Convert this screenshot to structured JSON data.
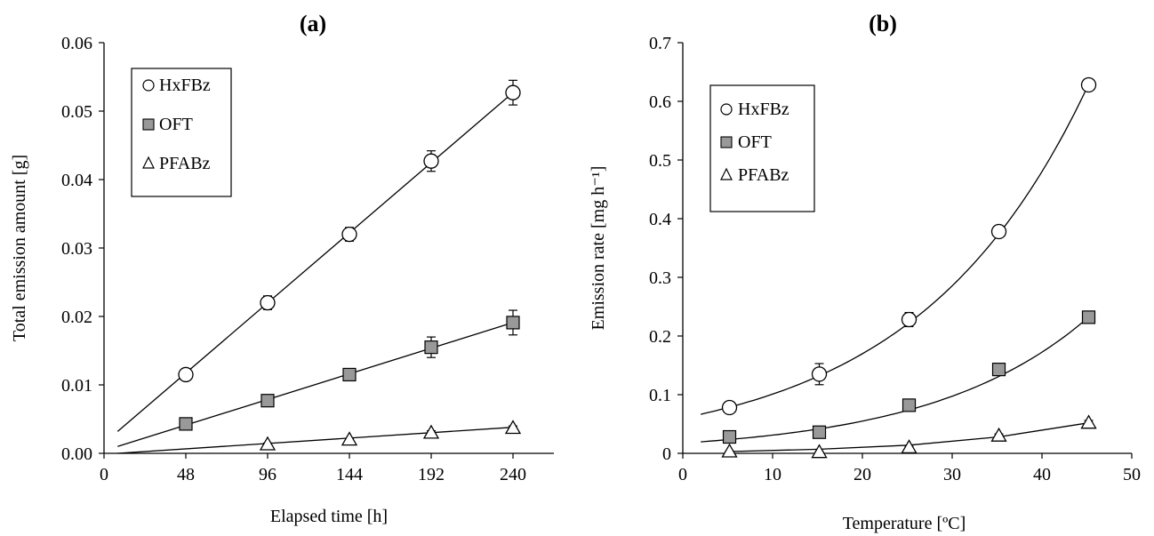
{
  "chart_data": [
    {
      "type": "scatter",
      "title": "(a)",
      "xlabel": "Elapsed time [h]",
      "ylabel": "Total emission amount [g]",
      "xlim": [
        0,
        264
      ],
      "ylim": [
        0,
        0.06
      ],
      "xticks": [
        0,
        48,
        96,
        144,
        192,
        240
      ],
      "xtick_labels": [
        "0",
        "48",
        "96",
        "144",
        "192",
        "240"
      ],
      "yticks": [
        0,
        0.01,
        0.02,
        0.03,
        0.04,
        0.05,
        0.06
      ],
      "ytick_labels": [
        "0.00",
        "0.01",
        "0.02",
        "0.03",
        "0.04",
        "0.05",
        "0.06"
      ],
      "grid": false,
      "legend_position": "top-left",
      "series": [
        {
          "name": "HxFBz",
          "marker": "circle",
          "fill": "#ffffff",
          "x": [
            48,
            96,
            144,
            192,
            240
          ],
          "y": [
            0.0115,
            0.022,
            0.032,
            0.0427,
            0.0527
          ],
          "err": [
            0.0006,
            0.001,
            0.001,
            0.0015,
            0.0018
          ],
          "fit": {
            "type": "linear",
            "x": [
              8,
              240
            ],
            "y": [
              0.0032,
              0.0527
            ]
          }
        },
        {
          "name": "OFT",
          "marker": "square",
          "fill": "#999999",
          "x": [
            48,
            96,
            144,
            192,
            240
          ],
          "y": [
            0.0043,
            0.0077,
            0.0115,
            0.0155,
            0.0191
          ],
          "err": [
            0.0003,
            0.0008,
            0.0008,
            0.0015,
            0.0018
          ],
          "fit": {
            "type": "linear",
            "x": [
              8,
              240
            ],
            "y": [
              0.001,
              0.0191
            ]
          }
        },
        {
          "name": "PFABz",
          "marker": "triangle",
          "fill": "#ffffff",
          "x": [
            96,
            144,
            192,
            240
          ],
          "y": [
            0.0013,
            0.002,
            0.003,
            0.0037
          ],
          "err": [
            0.0002,
            0.0002,
            0.0003,
            0.0003
          ],
          "fit": {
            "type": "linear",
            "x": [
              8,
              240
            ],
            "y": [
              0.0,
              0.0038
            ]
          }
        }
      ]
    },
    {
      "type": "scatter",
      "title": "(b)",
      "xlabel": "Temperature [ºC]",
      "ylabel": "Emission rate [mg h⁻¹]",
      "xlim": [
        0,
        50
      ],
      "ylim": [
        0,
        0.7
      ],
      "xticks": [
        0,
        10,
        20,
        30,
        40,
        50
      ],
      "xtick_labels": [
        "0",
        "10",
        "20",
        "30",
        "40",
        "50"
      ],
      "yticks": [
        0,
        0.1,
        0.2,
        0.3,
        0.4,
        0.5,
        0.6,
        0.7
      ],
      "ytick_labels": [
        "0",
        "0.1",
        "0.2",
        "0.3",
        "0.4",
        "0.5",
        "0.6",
        "0.7"
      ],
      "grid": false,
      "legend_position": "top-left",
      "series": [
        {
          "name": "HxFBz",
          "marker": "circle",
          "fill": "#ffffff",
          "x": [
            5.2,
            15.2,
            25.2,
            35.2,
            45.2
          ],
          "y": [
            0.078,
            0.135,
            0.228,
            0.378,
            0.628
          ],
          "err": [
            0.006,
            0.018,
            0.012,
            0.008,
            0.006
          ],
          "fit": {
            "type": "exponential",
            "a": 0.06,
            "b": 0.052,
            "x": [
              2,
              45.2
            ]
          }
        },
        {
          "name": "OFT",
          "marker": "square",
          "fill": "#999999",
          "x": [
            5.2,
            15.2,
            25.2,
            35.2,
            45.2
          ],
          "y": [
            0.028,
            0.036,
            0.082,
            0.143,
            0.232
          ],
          "err": [
            0.003,
            0.004,
            0.006,
            0.006,
            0.006
          ],
          "fit": {
            "type": "exponential",
            "a": 0.0175,
            "b": 0.0572,
            "x": [
              2,
              45.2
            ]
          }
        },
        {
          "name": "PFABz",
          "marker": "triangle",
          "fill": "#ffffff",
          "x": [
            5.2,
            15.2,
            25.2,
            35.2,
            45.2
          ],
          "y": [
            0.003,
            0.002,
            0.01,
            0.03,
            0.052
          ],
          "err": [
            0.001,
            0.001,
            0.002,
            0.003,
            0.004
          ],
          "fit": {
            "type": "polyline",
            "x": [
              5.2,
              15.2,
              25.2,
              35.2,
              45.2
            ],
            "y": [
              0.003,
              0.007,
              0.014,
              0.028,
              0.052
            ]
          }
        }
      ]
    }
  ]
}
